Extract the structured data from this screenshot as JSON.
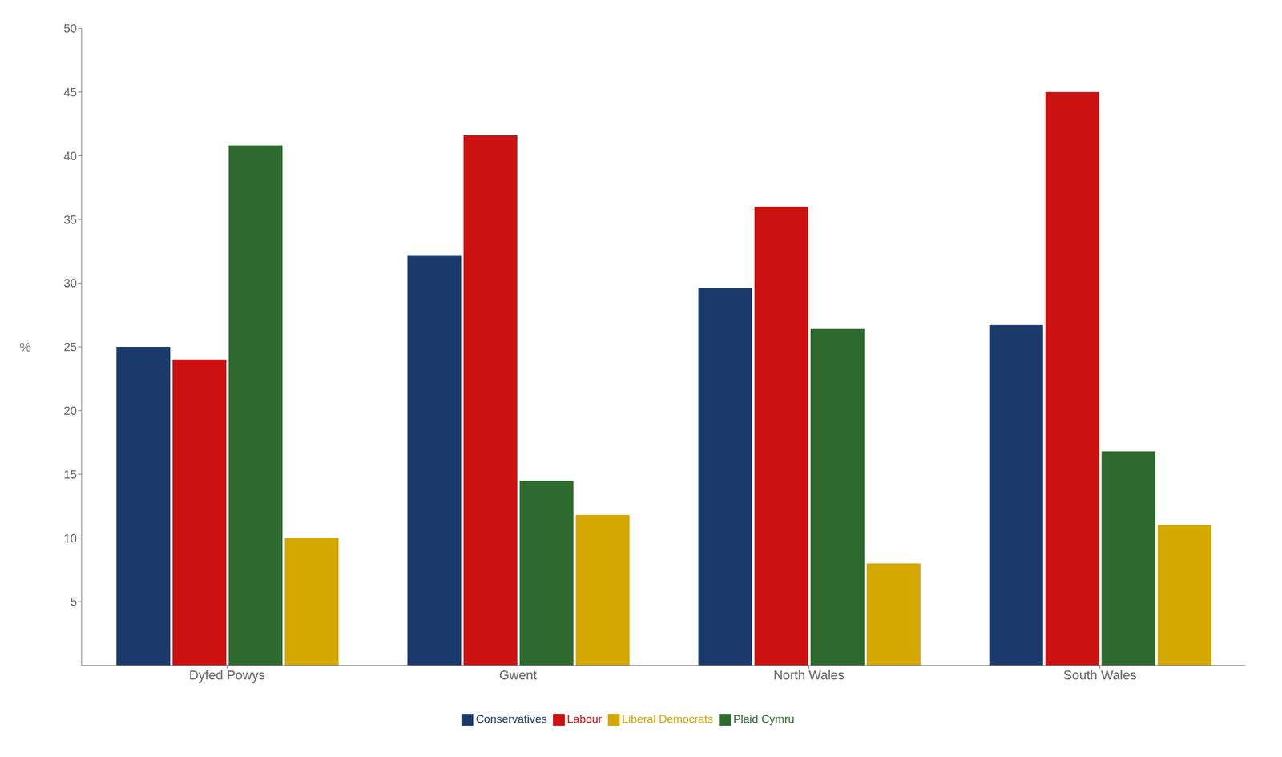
{
  "chart_data": {
    "type": "bar",
    "categories": [
      "Dyfed Powys",
      "Gwent",
      "North Wales",
      "South Wales"
    ],
    "series": [
      {
        "name": "Conservatives",
        "color": "#1a3a6b",
        "values": [
          25.0,
          32.2,
          29.6,
          26.7
        ]
      },
      {
        "name": "Labour",
        "color": "#cc1111",
        "values": [
          24.0,
          41.6,
          36.0,
          45.0
        ]
      },
      {
        "name": "Plaid Cymru",
        "color": "#2d6a2d",
        "values": [
          40.8,
          14.5,
          26.4,
          16.8
        ]
      },
      {
        "name": "Liberal Democrats",
        "color": "#d4a800",
        "values": [
          10.0,
          11.8,
          8.0,
          11.0
        ]
      }
    ],
    "ylabel": "%",
    "ylim": [
      0,
      50
    ],
    "yticks": [
      5,
      10,
      15,
      20,
      25,
      30,
      35,
      40,
      45,
      50
    ],
    "grid": false,
    "legend": "bottom"
  }
}
